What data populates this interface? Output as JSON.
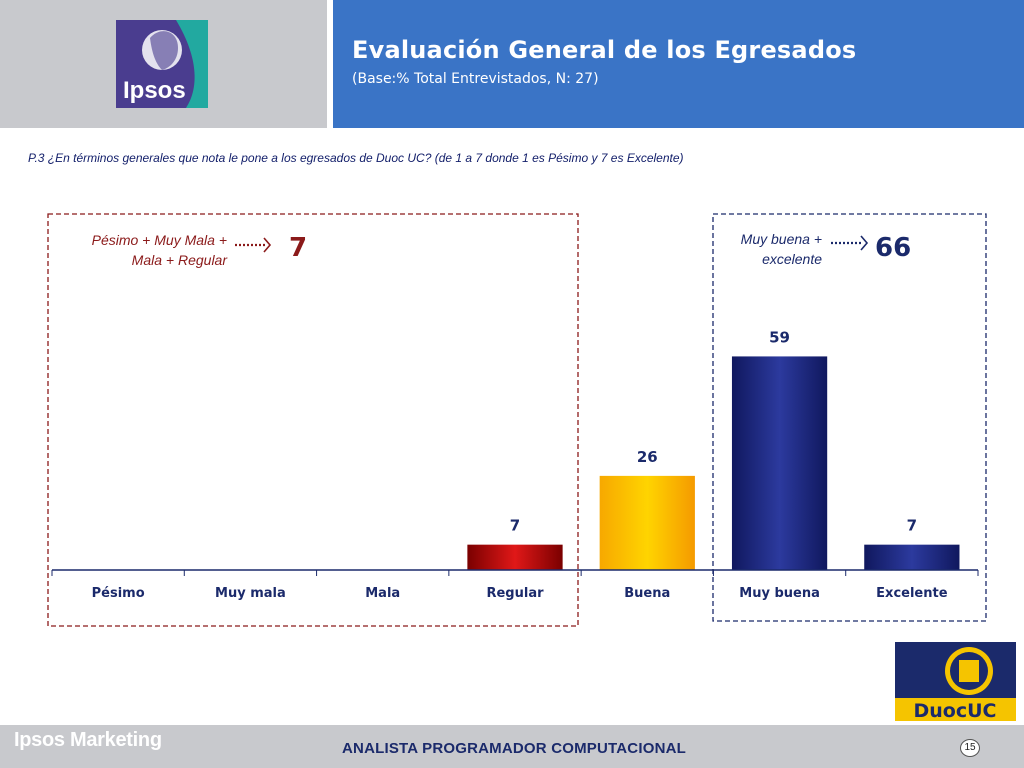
{
  "header": {
    "title": "Evaluación General de los Egresados",
    "subtitle": "(Base:% Total Entrevistados, N: 27)",
    "logo_text": "Ipsos"
  },
  "question": "P.3 ¿En términos generales que nota le pone a los egresados de Duoc UC? (de 1 a 7 donde 1 es Pésimo y 7 es Excelente)",
  "groups": {
    "negative": {
      "label_line1": "Pésimo + Muy Mala +",
      "label_line2": "Mala + Regular",
      "value": "7"
    },
    "positive": {
      "label_line1": "Muy buena +",
      "label_line2": "excelente",
      "value": "66"
    }
  },
  "chart_data": {
    "type": "bar",
    "title": "",
    "xlabel": "",
    "ylabel": "",
    "categories": [
      "Pésimo",
      "Muy mala",
      "Mala",
      "Regular",
      "Buena",
      "Muy buena",
      "Excelente"
    ],
    "values": [
      null,
      null,
      null,
      7,
      26,
      59,
      7
    ],
    "colors": [
      "#cc1010",
      "#cc1010",
      "#cc1010",
      "#cc1010",
      "#f7a800",
      "#1e2a86",
      "#1e2a86"
    ],
    "ylim": [
      0,
      100
    ],
    "grid": false,
    "legend": "none"
  },
  "footer": {
    "brand": "Ipsos Marketing",
    "center": "ANALISTA PROGRAMADOR COMPUTACIONAL",
    "page": "15",
    "partner_logo_text": "DuocUC"
  },
  "colors": {
    "header_blue": "#3a74c6",
    "header_gray": "#c8c9cd",
    "negative_red": "#8b1a1a",
    "positive_navy": "#1b2a6b"
  }
}
